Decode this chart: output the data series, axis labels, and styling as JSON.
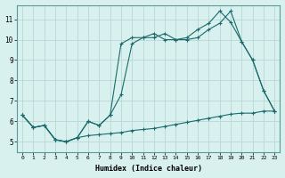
{
  "xlabel": "Humidex (Indice chaleur)",
  "bg_color": "#d8f0ee",
  "grid_color": "#b8d8d4",
  "line_color": "#1a6b6b",
  "xlim": [
    -0.5,
    23.5
  ],
  "ylim": [
    4.5,
    11.7
  ],
  "xticks": [
    0,
    1,
    2,
    3,
    4,
    5,
    6,
    7,
    8,
    9,
    10,
    11,
    12,
    13,
    14,
    15,
    16,
    17,
    18,
    19,
    20,
    21,
    22,
    23
  ],
  "yticks": [
    5,
    6,
    7,
    8,
    9,
    10,
    11
  ],
  "line1_x": [
    0,
    1,
    2,
    3,
    4,
    5,
    6,
    7,
    8,
    9,
    10,
    11,
    12,
    13,
    14,
    15,
    16,
    17,
    18,
    19,
    20,
    21,
    22,
    23
  ],
  "line1_y": [
    6.3,
    5.7,
    5.8,
    5.1,
    5.0,
    5.2,
    5.3,
    5.35,
    5.4,
    5.45,
    5.55,
    5.6,
    5.65,
    5.75,
    5.85,
    5.95,
    6.05,
    6.15,
    6.25,
    6.35,
    6.4,
    6.4,
    6.5,
    6.5
  ],
  "line2_x": [
    0,
    1,
    2,
    3,
    4,
    5,
    6,
    7,
    8,
    9,
    10,
    11,
    12,
    13,
    14,
    15,
    16,
    17,
    18,
    19,
    20,
    21,
    22,
    23
  ],
  "line2_y": [
    6.3,
    5.7,
    5.8,
    5.1,
    5.0,
    5.2,
    6.0,
    5.8,
    6.3,
    7.3,
    9.8,
    10.1,
    10.1,
    10.3,
    10.0,
    10.0,
    10.1,
    10.5,
    10.8,
    11.4,
    9.9,
    9.0,
    7.5,
    6.5
  ],
  "line3_x": [
    0,
    1,
    2,
    3,
    4,
    5,
    6,
    7,
    8,
    9,
    10,
    11,
    12,
    13,
    14,
    15,
    16,
    17,
    18,
    19,
    20,
    21,
    22,
    23
  ],
  "line3_y": [
    6.3,
    5.7,
    5.8,
    5.1,
    5.0,
    5.2,
    6.0,
    5.8,
    6.3,
    9.8,
    10.1,
    10.1,
    10.3,
    10.0,
    10.0,
    10.1,
    10.5,
    10.8,
    11.4,
    10.85,
    9.9,
    9.0,
    7.5,
    6.5
  ],
  "marker": "+"
}
